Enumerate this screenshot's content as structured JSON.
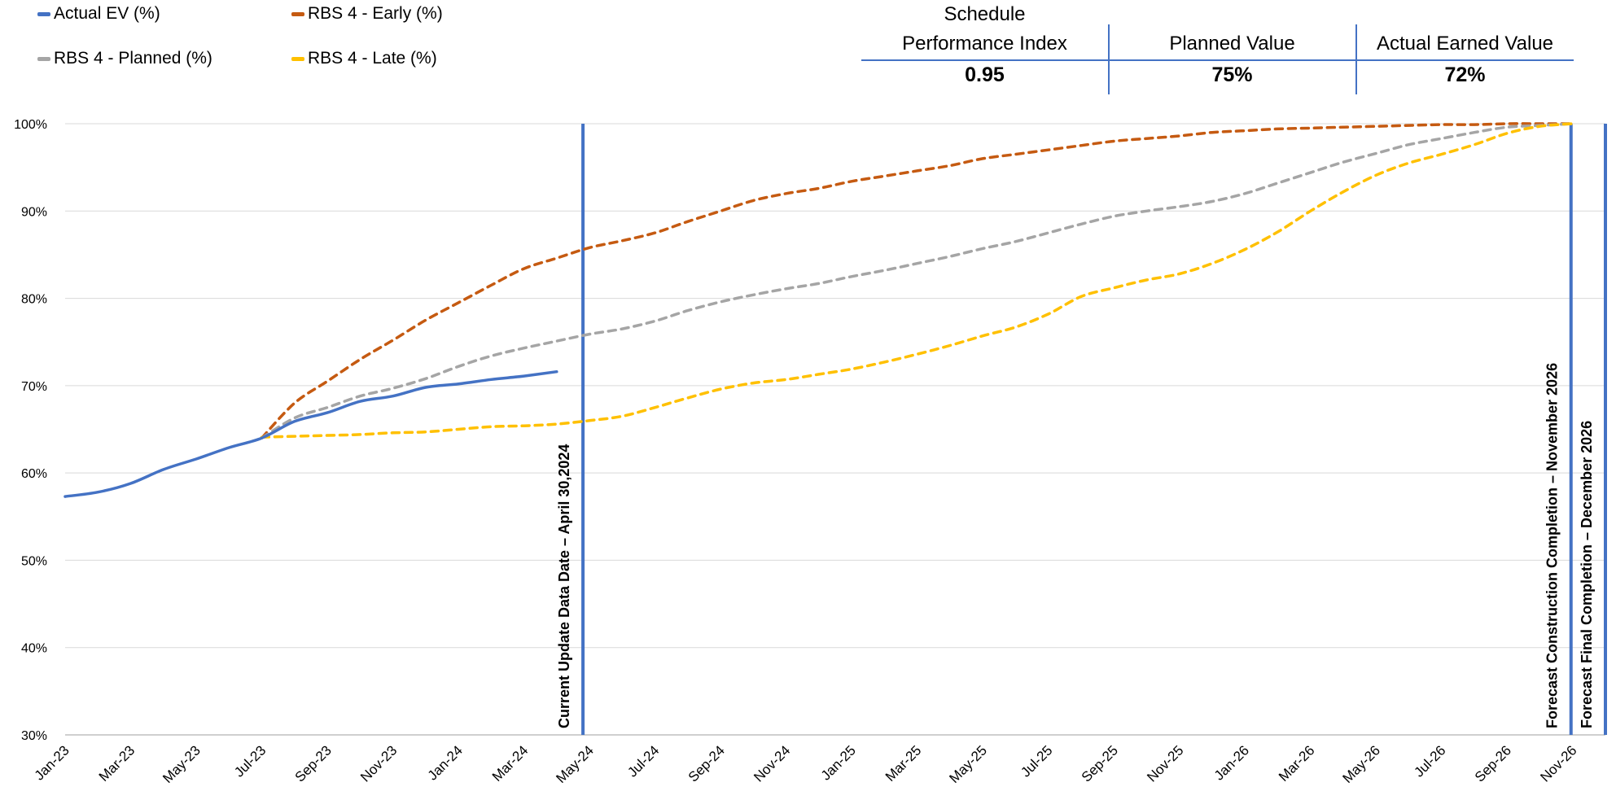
{
  "legend": [
    {
      "label": "Actual EV (%)",
      "color": "#4472C4"
    },
    {
      "label": "RBS 4 - Early (%)",
      "color": "#C55A11"
    },
    {
      "label": "RBS 4 - Planned (%)",
      "color": "#A5A5A5"
    },
    {
      "label": "RBS 4 - Late (%)",
      "color": "#FFC000"
    }
  ],
  "kpi": [
    {
      "label_line1": "Schedule",
      "label_line2": "Performance Index",
      "value": "0.95"
    },
    {
      "label_line1": "",
      "label_line2": "Planned Value",
      "value": "75%"
    },
    {
      "label_line1": "",
      "label_line2": "Actual Earned Value",
      "value": "72%"
    }
  ],
  "chart_data": {
    "type": "line",
    "title": "",
    "xlabel": "",
    "ylabel": "",
    "ylim": [
      30,
      100
    ],
    "y_ticks": [
      "30%",
      "40%",
      "50%",
      "60%",
      "70%",
      "80%",
      "90%",
      "100%"
    ],
    "x_tick_labels": [
      "Jan-23",
      "Mar-23",
      "May-23",
      "Jul-23",
      "Sep-23",
      "Nov-23",
      "Jan-24",
      "Mar-24",
      "May-24",
      "Jul-24",
      "Sep-24",
      "Nov-24",
      "Jan-25",
      "Mar-25",
      "May-25",
      "Jul-25",
      "Sep-25",
      "Nov-25",
      "Jan-26",
      "Mar-26",
      "May-26",
      "Jul-26",
      "Sep-26",
      "Nov-26"
    ],
    "x_range": [
      "2023-01",
      "2026-12"
    ],
    "grid": "horizontal",
    "legend_position": "top-left",
    "series": [
      {
        "name": "Actual EV (%)",
        "color": "#4472C4",
        "dash": "solid",
        "points": [
          [
            "2023-01",
            57.3
          ],
          [
            "2023-02",
            57.8
          ],
          [
            "2023-03",
            58.8
          ],
          [
            "2023-04",
            60.4
          ],
          [
            "2023-05",
            61.6
          ],
          [
            "2023-06",
            62.9
          ],
          [
            "2023-07",
            64.0
          ],
          [
            "2023-08",
            65.9
          ],
          [
            "2023-09",
            66.9
          ],
          [
            "2023-10",
            68.2
          ],
          [
            "2023-11",
            68.8
          ],
          [
            "2023-12",
            69.8
          ],
          [
            "2024-01",
            70.2
          ],
          [
            "2024-02",
            70.7
          ],
          [
            "2024-03",
            71.1
          ],
          [
            "2024-04",
            71.6
          ]
        ]
      },
      {
        "name": "RBS 4 - Early (%)",
        "color": "#C55A11",
        "dash": "dashed",
        "points": [
          [
            "2023-07",
            64.0
          ],
          [
            "2023-08",
            68.0
          ],
          [
            "2023-09",
            70.5
          ],
          [
            "2023-10",
            73.0
          ],
          [
            "2023-11",
            75.2
          ],
          [
            "2023-12",
            77.5
          ],
          [
            "2024-01",
            79.5
          ],
          [
            "2024-02",
            81.5
          ],
          [
            "2024-03",
            83.4
          ],
          [
            "2024-04",
            84.6
          ],
          [
            "2024-05",
            85.8
          ],
          [
            "2024-06",
            86.6
          ],
          [
            "2024-07",
            87.5
          ],
          [
            "2024-08",
            88.8
          ],
          [
            "2024-09",
            90.0
          ],
          [
            "2024-10",
            91.2
          ],
          [
            "2024-11",
            92.0
          ],
          [
            "2024-12",
            92.6
          ],
          [
            "2025-01",
            93.4
          ],
          [
            "2025-02",
            94.0
          ],
          [
            "2025-03",
            94.6
          ],
          [
            "2025-04",
            95.2
          ],
          [
            "2025-05",
            96.0
          ],
          [
            "2025-06",
            96.5
          ],
          [
            "2025-07",
            97.0
          ],
          [
            "2025-08",
            97.5
          ],
          [
            "2025-09",
            98.0
          ],
          [
            "2025-10",
            98.3
          ],
          [
            "2025-11",
            98.6
          ],
          [
            "2025-12",
            99.0
          ],
          [
            "2026-01",
            99.2
          ],
          [
            "2026-02",
            99.4
          ],
          [
            "2026-03",
            99.5
          ],
          [
            "2026-04",
            99.6
          ],
          [
            "2026-05",
            99.7
          ],
          [
            "2026-06",
            99.8
          ],
          [
            "2026-07",
            99.9
          ],
          [
            "2026-08",
            99.9
          ],
          [
            "2026-09",
            100.0
          ],
          [
            "2026-10",
            100.0
          ],
          [
            "2026-11",
            100.0
          ]
        ]
      },
      {
        "name": "RBS 4 - Planned (%)",
        "color": "#A5A5A5",
        "dash": "dashed",
        "points": [
          [
            "2023-07",
            64.0
          ],
          [
            "2023-08",
            66.3
          ],
          [
            "2023-09",
            67.5
          ],
          [
            "2023-10",
            68.8
          ],
          [
            "2023-11",
            69.7
          ],
          [
            "2023-12",
            70.8
          ],
          [
            "2024-01",
            72.2
          ],
          [
            "2024-02",
            73.4
          ],
          [
            "2024-03",
            74.3
          ],
          [
            "2024-04",
            75.1
          ],
          [
            "2024-05",
            75.9
          ],
          [
            "2024-06",
            76.5
          ],
          [
            "2024-07",
            77.4
          ],
          [
            "2024-08",
            78.6
          ],
          [
            "2024-09",
            79.6
          ],
          [
            "2024-10",
            80.4
          ],
          [
            "2024-11",
            81.1
          ],
          [
            "2024-12",
            81.7
          ],
          [
            "2025-01",
            82.5
          ],
          [
            "2025-02",
            83.2
          ],
          [
            "2025-03",
            84.0
          ],
          [
            "2025-04",
            84.8
          ],
          [
            "2025-05",
            85.7
          ],
          [
            "2025-06",
            86.5
          ],
          [
            "2025-07",
            87.5
          ],
          [
            "2025-08",
            88.5
          ],
          [
            "2025-09",
            89.4
          ],
          [
            "2025-10",
            90.0
          ],
          [
            "2025-11",
            90.5
          ],
          [
            "2025-12",
            91.1
          ],
          [
            "2026-01",
            92.0
          ],
          [
            "2026-02",
            93.2
          ],
          [
            "2026-03",
            94.4
          ],
          [
            "2026-04",
            95.6
          ],
          [
            "2026-05",
            96.6
          ],
          [
            "2026-06",
            97.6
          ],
          [
            "2026-07",
            98.3
          ],
          [
            "2026-08",
            99.0
          ],
          [
            "2026-09",
            99.6
          ],
          [
            "2026-10",
            99.8
          ],
          [
            "2026-11",
            100.0
          ]
        ]
      },
      {
        "name": "RBS 4 - Late (%)",
        "color": "#FFC000",
        "dash": "dashed",
        "points": [
          [
            "2023-07",
            64.1
          ],
          [
            "2023-08",
            64.2
          ],
          [
            "2023-09",
            64.3
          ],
          [
            "2023-10",
            64.4
          ],
          [
            "2023-11",
            64.6
          ],
          [
            "2023-12",
            64.7
          ],
          [
            "2024-01",
            65.0
          ],
          [
            "2024-02",
            65.3
          ],
          [
            "2024-03",
            65.4
          ],
          [
            "2024-04",
            65.6
          ],
          [
            "2024-05",
            66.0
          ],
          [
            "2024-06",
            66.5
          ],
          [
            "2024-07",
            67.5
          ],
          [
            "2024-08",
            68.6
          ],
          [
            "2024-09",
            69.6
          ],
          [
            "2024-10",
            70.3
          ],
          [
            "2024-11",
            70.7
          ],
          [
            "2024-12",
            71.3
          ],
          [
            "2025-01",
            71.9
          ],
          [
            "2025-02",
            72.7
          ],
          [
            "2025-03",
            73.6
          ],
          [
            "2025-04",
            74.6
          ],
          [
            "2025-05",
            75.7
          ],
          [
            "2025-06",
            76.7
          ],
          [
            "2025-07",
            78.2
          ],
          [
            "2025-08",
            80.2
          ],
          [
            "2025-09",
            81.2
          ],
          [
            "2025-10",
            82.1
          ],
          [
            "2025-11",
            82.8
          ],
          [
            "2025-12",
            84.0
          ],
          [
            "2026-01",
            85.6
          ],
          [
            "2026-02",
            87.6
          ],
          [
            "2026-03",
            90.0
          ],
          [
            "2026-04",
            92.2
          ],
          [
            "2026-05",
            94.1
          ],
          [
            "2026-06",
            95.5
          ],
          [
            "2026-07",
            96.5
          ],
          [
            "2026-08",
            97.6
          ],
          [
            "2026-09",
            98.9
          ],
          [
            "2026-10",
            99.7
          ],
          [
            "2026-11",
            100.0
          ]
        ]
      }
    ],
    "markers": [
      {
        "date": "2024-05",
        "label": "Current Update Data Date – April 30,2024"
      },
      {
        "date": "2026-11",
        "label": "Forecast Construction Completion – November 2026"
      },
      {
        "date": "2026-12",
        "label": "Forecast Final Completion – December 2026"
      }
    ]
  }
}
